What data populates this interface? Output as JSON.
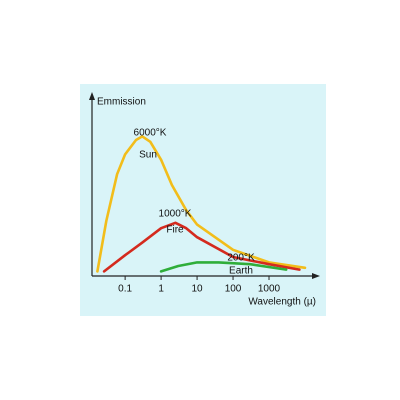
{
  "chart_data": {
    "type": "line",
    "y_label": "Emmission",
    "x_label": "Wavelength (µ)",
    "x_scale": "log",
    "xlim": [
      0.012,
      23000
    ],
    "xticks": [
      0.1,
      1,
      10,
      100,
      1000
    ],
    "ylim": [
      0,
      100
    ],
    "series": [
      {
        "name": "Sun",
        "label": "6000°K",
        "color": "#f2bd1a",
        "x": [
          0.017,
          0.03,
          0.06,
          0.1,
          0.2,
          0.3,
          0.5,
          1,
          2,
          5,
          10,
          100,
          1000,
          10000
        ],
        "values": [
          2,
          30,
          56,
          67,
          75,
          77,
          74,
          64,
          50,
          36,
          28,
          14,
          7,
          4
        ]
      },
      {
        "name": "Fire",
        "label": "1000°K",
        "color": "#d42a1e",
        "x": [
          0.026,
          0.1,
          0.3,
          1,
          2.5,
          5,
          10,
          100,
          1000,
          7000
        ],
        "values": [
          2,
          11,
          18,
          26,
          29,
          26,
          21,
          10,
          6,
          3
        ]
      },
      {
        "name": "Earth",
        "label": "200°K",
        "color": "#2fae3a",
        "x": [
          1,
          3,
          10,
          40,
          300,
          3000
        ],
        "values": [
          2,
          5,
          7,
          7,
          6,
          3
        ]
      }
    ]
  }
}
